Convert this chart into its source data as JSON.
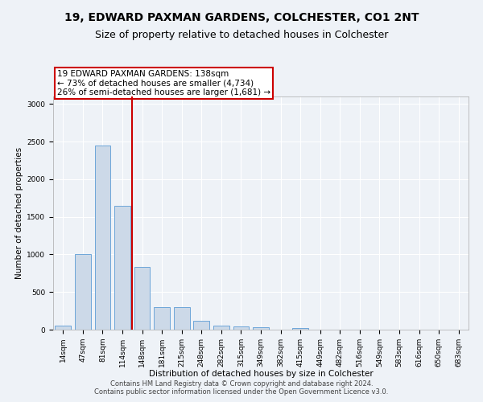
{
  "title1": "19, EDWARD PAXMAN GARDENS, COLCHESTER, CO1 2NT",
  "title2": "Size of property relative to detached houses in Colchester",
  "xlabel": "Distribution of detached houses by size in Colchester",
  "ylabel": "Number of detached properties",
  "categories": [
    "14sqm",
    "47sqm",
    "81sqm",
    "114sqm",
    "148sqm",
    "181sqm",
    "215sqm",
    "248sqm",
    "282sqm",
    "315sqm",
    "349sqm",
    "382sqm",
    "415sqm",
    "449sqm",
    "482sqm",
    "516sqm",
    "549sqm",
    "583sqm",
    "616sqm",
    "650sqm",
    "683sqm"
  ],
  "values": [
    50,
    1000,
    2450,
    1650,
    830,
    295,
    295,
    120,
    50,
    45,
    35,
    0,
    25,
    0,
    0,
    0,
    0,
    0,
    0,
    0,
    0
  ],
  "bar_color": "#ccd9e8",
  "bar_edge_color": "#5b9bd5",
  "red_line_x": 3.5,
  "red_line_color": "#cc0000",
  "annotation_text": "19 EDWARD PAXMAN GARDENS: 138sqm\n← 73% of detached houses are smaller (4,734)\n26% of semi-detached houses are larger (1,681) →",
  "annotation_box_color": "#ffffff",
  "annotation_box_edge_color": "#cc0000",
  "ylim": [
    0,
    3100
  ],
  "background_color": "#eef2f7",
  "grid_color": "#ffffff",
  "footer_line1": "Contains HM Land Registry data © Crown copyright and database right 2024.",
  "footer_line2": "Contains public sector information licensed under the Open Government Licence v3.0.",
  "title_fontsize": 10,
  "subtitle_fontsize": 9,
  "label_fontsize": 7.5,
  "tick_fontsize": 6.5,
  "footer_fontsize": 6
}
